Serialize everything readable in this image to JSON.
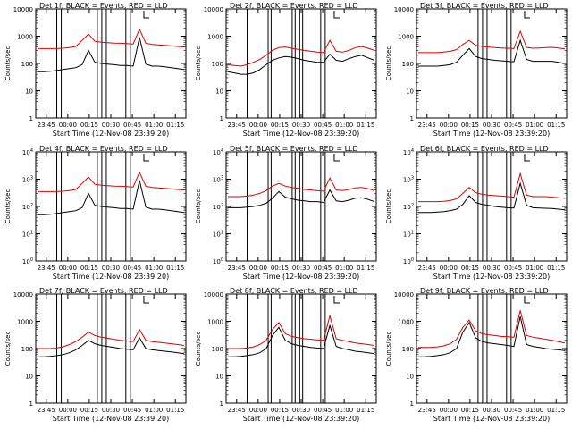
{
  "common": {
    "ylabel": "Counts/sec",
    "xlabel": "Start Time (12-Nov-08 23:39:20)",
    "x_ticks": [
      "23:45",
      "00:00",
      "00:15",
      "00:30",
      "00:45",
      "01:00",
      "01:15"
    ],
    "y_ticks_plain": [
      "1",
      "10",
      "100",
      "1000",
      "10000"
    ],
    "y_scale": "log",
    "ylim": [
      1,
      10000
    ],
    "black_series": "Events",
    "red_series": "LLD",
    "colors": {
      "black": "#000000",
      "red": "#e00000",
      "background": "#ffffff"
    }
  },
  "chart_data": [
    {
      "type": "line",
      "title": "Det 1f, BLACK = Events, RED = LLD",
      "y_format": "plain",
      "series": [
        {
          "name": "Events",
          "color": "#000000",
          "values": [
            50,
            50,
            52,
            55,
            60,
            65,
            70,
            90,
            300,
            110,
            100,
            95,
            90,
            85,
            85,
            80,
            900,
            95,
            80,
            80,
            75,
            70,
            65,
            60
          ]
        },
        {
          "name": "LLD",
          "color": "#e00000",
          "values": [
            350,
            350,
            350,
            350,
            360,
            380,
            420,
            700,
            1200,
            650,
            600,
            580,
            560,
            550,
            540,
            520,
            1800,
            550,
            500,
            480,
            460,
            440,
            420,
            400
          ]
        }
      ]
    },
    {
      "type": "line",
      "title": "Det 2f, BLACK = Events, RED = LLD",
      "y_format": "plain",
      "series": [
        {
          "name": "Events",
          "color": "#000000",
          "values": [
            50,
            45,
            40,
            40,
            45,
            60,
            90,
            130,
            160,
            180,
            170,
            150,
            130,
            120,
            110,
            110,
            220,
            130,
            120,
            150,
            180,
            200,
            160,
            130
          ]
        },
        {
          "name": "LLD",
          "color": "#e00000",
          "values": [
            90,
            85,
            80,
            90,
            110,
            140,
            200,
            300,
            380,
            400,
            360,
            330,
            300,
            280,
            260,
            250,
            700,
            280,
            260,
            300,
            380,
            420,
            360,
            300
          ]
        }
      ]
    },
    {
      "type": "line",
      "title": "Det 3f, BLACK = Events, RED = LLD",
      "y_format": "plain",
      "series": [
        {
          "name": "Events",
          "color": "#000000",
          "values": [
            80,
            80,
            80,
            80,
            85,
            90,
            110,
            200,
            350,
            180,
            150,
            140,
            130,
            125,
            120,
            115,
            700,
            140,
            120,
            120,
            120,
            120,
            110,
            100
          ]
        },
        {
          "name": "LLD",
          "color": "#e00000",
          "values": [
            250,
            250,
            250,
            250,
            260,
            280,
            320,
            500,
            700,
            460,
            420,
            400,
            380,
            370,
            360,
            350,
            1500,
            390,
            360,
            370,
            380,
            390,
            370,
            340
          ]
        }
      ]
    },
    {
      "type": "line",
      "title": "Det 4f, BLACK = Events, RED = LLD",
      "y_format": "exp",
      "series": [
        {
          "name": "Events",
          "color": "#000000",
          "values": [
            50,
            50,
            52,
            55,
            60,
            65,
            70,
            90,
            300,
            110,
            100,
            95,
            90,
            85,
            85,
            80,
            900,
            95,
            80,
            80,
            75,
            70,
            65,
            60
          ]
        },
        {
          "name": "LLD",
          "color": "#e00000",
          "values": [
            350,
            350,
            350,
            350,
            360,
            380,
            420,
            700,
            1200,
            650,
            600,
            580,
            560,
            550,
            540,
            520,
            1800,
            550,
            500,
            480,
            460,
            440,
            420,
            400
          ]
        }
      ]
    },
    {
      "type": "line",
      "title": "Det 5f, BLACK = Events, RED = LLD",
      "y_format": "exp",
      "series": [
        {
          "name": "Events",
          "color": "#000000",
          "values": [
            90,
            90,
            90,
            95,
            100,
            110,
            130,
            200,
            350,
            220,
            190,
            170,
            160,
            150,
            150,
            140,
            400,
            160,
            150,
            170,
            200,
            210,
            180,
            150
          ]
        },
        {
          "name": "LLD",
          "color": "#e00000",
          "values": [
            230,
            230,
            230,
            240,
            260,
            300,
            380,
            560,
            700,
            560,
            500,
            460,
            420,
            400,
            380,
            360,
            1100,
            400,
            380,
            420,
            480,
            500,
            450,
            380
          ]
        }
      ]
    },
    {
      "type": "line",
      "title": "Det 6f, BLACK = Events, RED = LLD",
      "y_format": "exp",
      "series": [
        {
          "name": "Events",
          "color": "#000000",
          "values": [
            60,
            60,
            60,
            62,
            65,
            70,
            80,
            120,
            250,
            140,
            120,
            110,
            100,
            95,
            90,
            88,
            700,
            110,
            90,
            88,
            86,
            84,
            80,
            75
          ]
        },
        {
          "name": "LLD",
          "color": "#e00000",
          "values": [
            150,
            150,
            150,
            150,
            155,
            165,
            190,
            300,
            500,
            320,
            280,
            260,
            250,
            240,
            230,
            220,
            1600,
            260,
            230,
            230,
            230,
            220,
            210,
            200
          ]
        }
      ]
    },
    {
      "type": "line",
      "title": "Det 7f, BLACK = Events, RED = LLD",
      "y_format": "plain",
      "series": [
        {
          "name": "Events",
          "color": "#000000",
          "values": [
            50,
            50,
            52,
            55,
            60,
            70,
            90,
            130,
            200,
            150,
            130,
            120,
            110,
            100,
            95,
            90,
            250,
            100,
            90,
            85,
            80,
            75,
            70,
            65
          ]
        },
        {
          "name": "LLD",
          "color": "#e00000",
          "values": [
            100,
            100,
            100,
            105,
            115,
            140,
            180,
            260,
            400,
            300,
            260,
            240,
            220,
            200,
            190,
            180,
            500,
            200,
            180,
            170,
            160,
            150,
            140,
            130
          ]
        }
      ]
    },
    {
      "type": "line",
      "title": "Det 8f, BLACK = Events, RED = LLD",
      "y_format": "plain",
      "series": [
        {
          "name": "Events",
          "color": "#000000",
          "values": [
            50,
            50,
            52,
            55,
            60,
            70,
            100,
            300,
            600,
            200,
            150,
            130,
            120,
            110,
            105,
            100,
            700,
            120,
            100,
            90,
            80,
            75,
            70,
            65
          ]
        },
        {
          "name": "LLD",
          "color": "#e00000",
          "values": [
            100,
            100,
            100,
            105,
            115,
            140,
            200,
            500,
            900,
            350,
            280,
            250,
            230,
            220,
            210,
            200,
            1600,
            230,
            200,
            180,
            160,
            150,
            140,
            130
          ]
        }
      ]
    },
    {
      "type": "line",
      "title": "Det 9f, BLACK = Events, RED = LLD",
      "y_format": "plain",
      "series": [
        {
          "name": "Events",
          "color": "#000000",
          "values": [
            50,
            50,
            52,
            55,
            60,
            70,
            100,
            400,
            900,
            250,
            180,
            160,
            150,
            140,
            130,
            120,
            1500,
            140,
            120,
            110,
            100,
            95,
            90,
            85
          ]
        },
        {
          "name": "LLD",
          "color": "#e00000",
          "values": [
            110,
            110,
            110,
            115,
            125,
            150,
            220,
            600,
            1100,
            450,
            350,
            320,
            300,
            280,
            270,
            260,
            2500,
            300,
            260,
            240,
            220,
            200,
            180,
            160
          ]
        }
      ]
    }
  ]
}
